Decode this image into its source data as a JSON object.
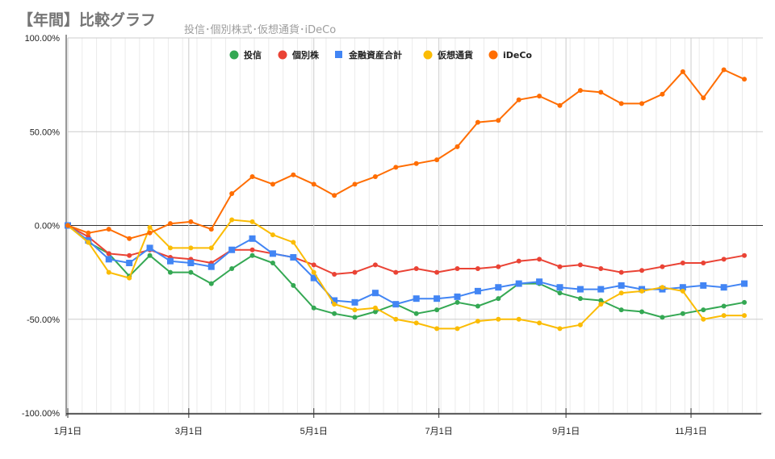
{
  "chart_data": {
    "type": "line",
    "title": "【年間】比較グラフ",
    "subtitle": "投信･個別株式･仮想通貨･iDeCo",
    "xlabel": "",
    "ylabel": "",
    "ylim": [
      -100,
      100
    ],
    "y_ticks": [
      "100.00%",
      "50.00%",
      "0.00%",
      "-50.00%",
      "-100.00%"
    ],
    "y_tick_values": [
      100,
      50,
      0,
      -50,
      -100
    ],
    "x_ticks": [
      "1月1日",
      "3月1日",
      "5月1日",
      "7月1日",
      "9月1日",
      "11月1日"
    ],
    "x_tick_days": [
      0,
      59,
      120,
      181,
      243,
      304
    ],
    "x_range_days": [
      0,
      338
    ],
    "grid": true,
    "legend_position": "top",
    "x": [
      "01-01",
      "01-11",
      "01-21",
      "01-31",
      "02-10",
      "02-20",
      "03-02",
      "03-12",
      "03-22",
      "04-01",
      "04-11",
      "04-21",
      "05-01",
      "05-11",
      "05-21",
      "05-31",
      "06-10",
      "06-20",
      "06-30",
      "07-10",
      "07-20",
      "07-30",
      "08-09",
      "08-19",
      "08-29",
      "09-08",
      "09-18",
      "09-28",
      "10-08",
      "10-18",
      "10-28",
      "11-07",
      "11-17",
      "11-27"
    ],
    "series": [
      {
        "name": "投信",
        "color": "#34a853",
        "marker": "circle",
        "values": [
          0,
          -9,
          -15,
          -27,
          -16,
          -25,
          -25,
          -31,
          -23,
          -16,
          -20,
          -32,
          -44,
          -47,
          -49,
          -46,
          -42,
          -47,
          -45,
          -41,
          -43,
          -39,
          -31,
          -31,
          -36,
          -39,
          -40,
          -45,
          -46,
          -49,
          -47,
          -45,
          -43,
          -41
        ]
      },
      {
        "name": "個別株",
        "color": "#ea4335",
        "marker": "circle",
        "values": [
          0,
          -6,
          -15,
          -16,
          -13,
          -17,
          -18,
          -20,
          -13,
          -13,
          -15,
          -17,
          -21,
          -26,
          -25,
          -21,
          -25,
          -23,
          -25,
          -23,
          -23,
          -22,
          -19,
          -18,
          -22,
          -21,
          -23,
          -25,
          -24,
          -22,
          -20,
          -20,
          -18,
          -16
        ]
      },
      {
        "name": "金融資産合計",
        "color": "#4285f4",
        "marker": "square",
        "values": [
          0,
          -8,
          -18,
          -20,
          -12,
          -19,
          -20,
          -22,
          -13,
          -7,
          -15,
          -17,
          -28,
          -40,
          -41,
          -36,
          -42,
          -39,
          -39,
          -38,
          -35,
          -33,
          -31,
          -30,
          -33,
          -34,
          -34,
          -32,
          -34,
          -34,
          -33,
          -32,
          -33,
          -31
        ]
      },
      {
        "name": "仮想通貨",
        "color": "#fbbc04",
        "marker": "circle",
        "values": [
          0,
          -9,
          -25,
          -28,
          -1,
          -12,
          -12,
          -12,
          3,
          2,
          -5,
          -9,
          -25,
          -42,
          -45,
          -44,
          -50,
          -52,
          -55,
          -55,
          -51,
          -50,
          -50,
          -52,
          -55,
          -53,
          -42,
          -36,
          -35,
          -33,
          -35,
          -50,
          -48,
          -48
        ]
      },
      {
        "name": "iDeCo",
        "color": "#ff6d01",
        "marker": "circle",
        "values": [
          0,
          -4,
          -2,
          -7,
          -4,
          1,
          2,
          -2,
          17,
          26,
          22,
          27,
          22,
          16,
          22,
          26,
          31,
          33,
          35,
          42,
          55,
          56,
          67,
          69,
          64,
          72,
          71,
          65,
          65,
          70,
          82,
          68,
          83,
          78
        ]
      }
    ]
  }
}
